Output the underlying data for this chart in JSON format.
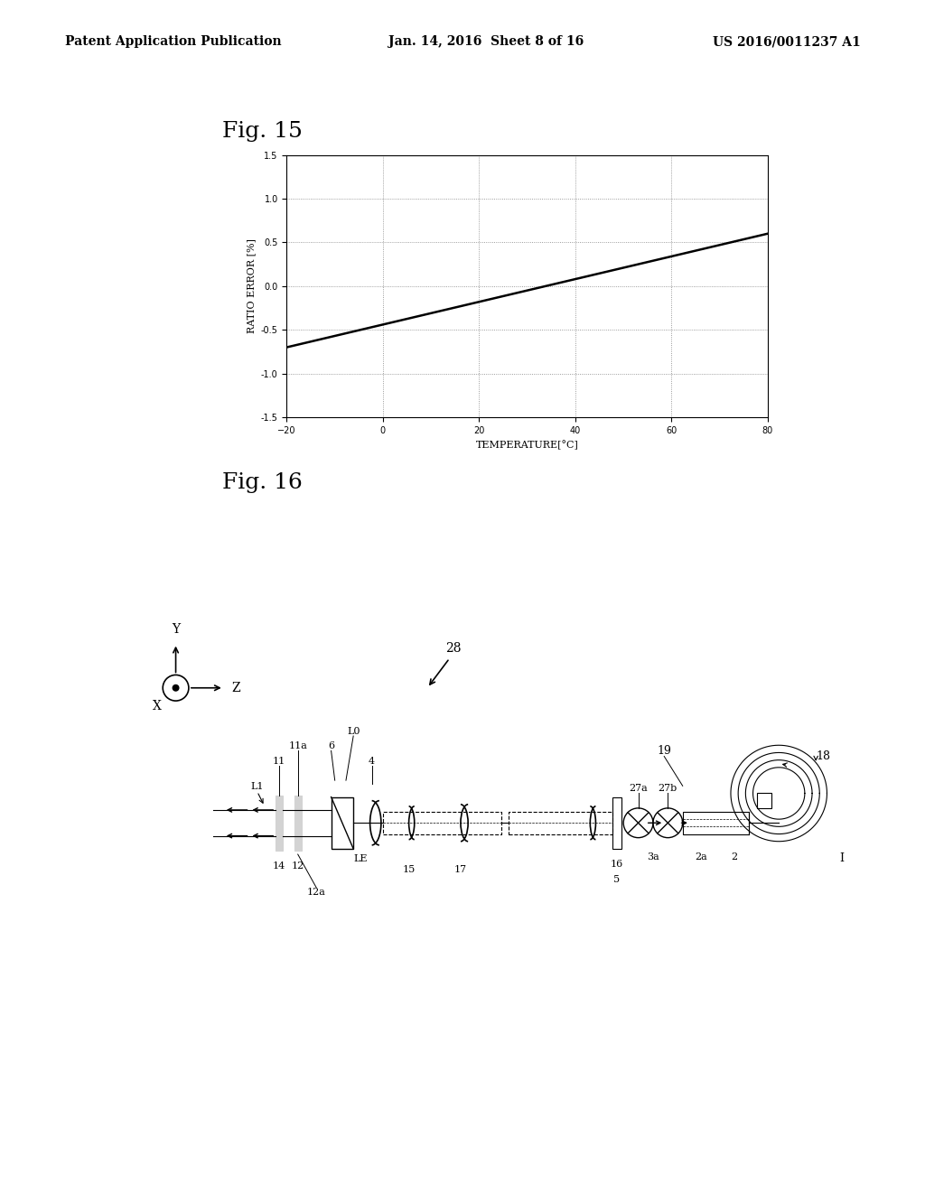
{
  "bg_color": "#ffffff",
  "header_left": "Patent Application Publication",
  "header_center": "Jan. 14, 2016  Sheet 8 of 16",
  "header_right": "US 2016/0011237 A1",
  "fig15_label": "Fig. 15",
  "fig16_label": "Fig. 16",
  "xlabel": "TEMPERATURE[°C]",
  "ylabel": "RATIO ERROR [%]",
  "x_data": [
    -20,
    80
  ],
  "y_data": [
    -0.7,
    0.6
  ],
  "xlim": [
    -20,
    80
  ],
  "ylim": [
    -1.5,
    1.5
  ],
  "xticks": [
    -20,
    0,
    20,
    40,
    60,
    80
  ],
  "yticks": [
    -1.5,
    -1.0,
    -0.5,
    0.0,
    0.5,
    1.0,
    1.5
  ]
}
